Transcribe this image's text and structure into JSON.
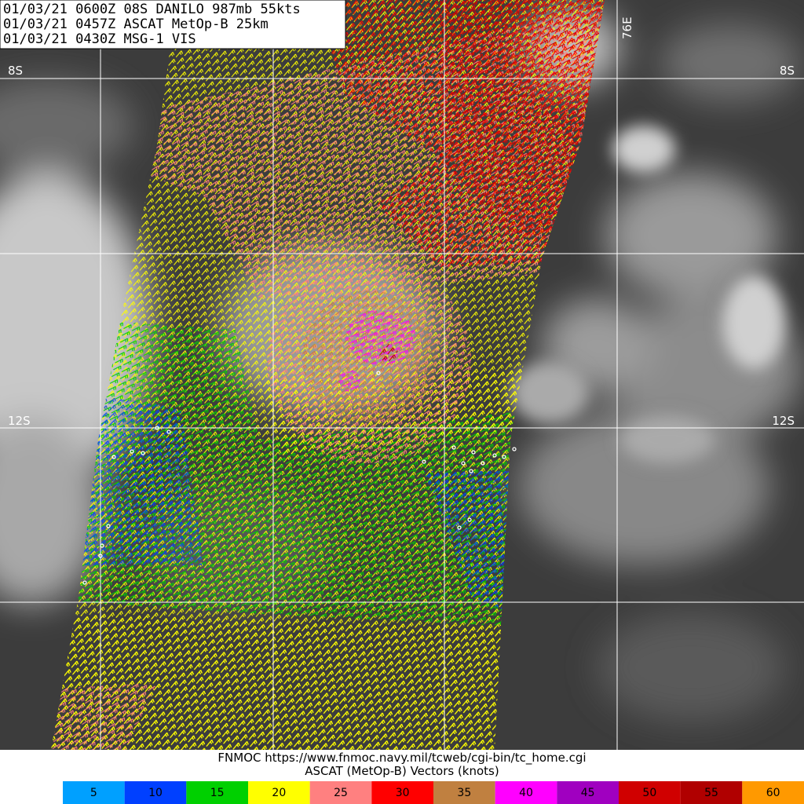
{
  "header": {
    "lines": [
      "01/03/21 0600Z  08S DANILO 987mb 55kts",
      "01/03/21 0457Z  ASCAT MetOp-B 25km",
      "01/03/21 0430Z  MSG-1 VIS"
    ]
  },
  "map_labels": {
    "lat_top_left": "8S",
    "lat_top_right": "8S",
    "lat_mid_left": "12S",
    "lat_mid_right": "12S",
    "lon": "76E"
  },
  "footer": {
    "lines": [
      "FNMOC https://www.fnmoc.navy.mil/tcweb/cgi-bin/tc_home.cgi",
      "ASCAT (MetOp-B) Vectors (knots)"
    ]
  },
  "legend": {
    "items": [
      {
        "value": 5,
        "color": "#00a0ff"
      },
      {
        "value": 10,
        "color": "#0040ff"
      },
      {
        "value": 15,
        "color": "#00d000"
      },
      {
        "value": 20,
        "color": "#ffff00"
      },
      {
        "value": 25,
        "color": "#ff8080"
      },
      {
        "value": 30,
        "color": "#ff0000"
      },
      {
        "value": 35,
        "color": "#c08040"
      },
      {
        "value": 40,
        "color": "#ff00ff"
      },
      {
        "value": 45,
        "color": "#a000c0"
      },
      {
        "value": 50,
        "color": "#d00000"
      },
      {
        "value": 55,
        "color": "#b00000"
      },
      {
        "value": 60,
        "color": "#ff9900"
      }
    ]
  }
}
